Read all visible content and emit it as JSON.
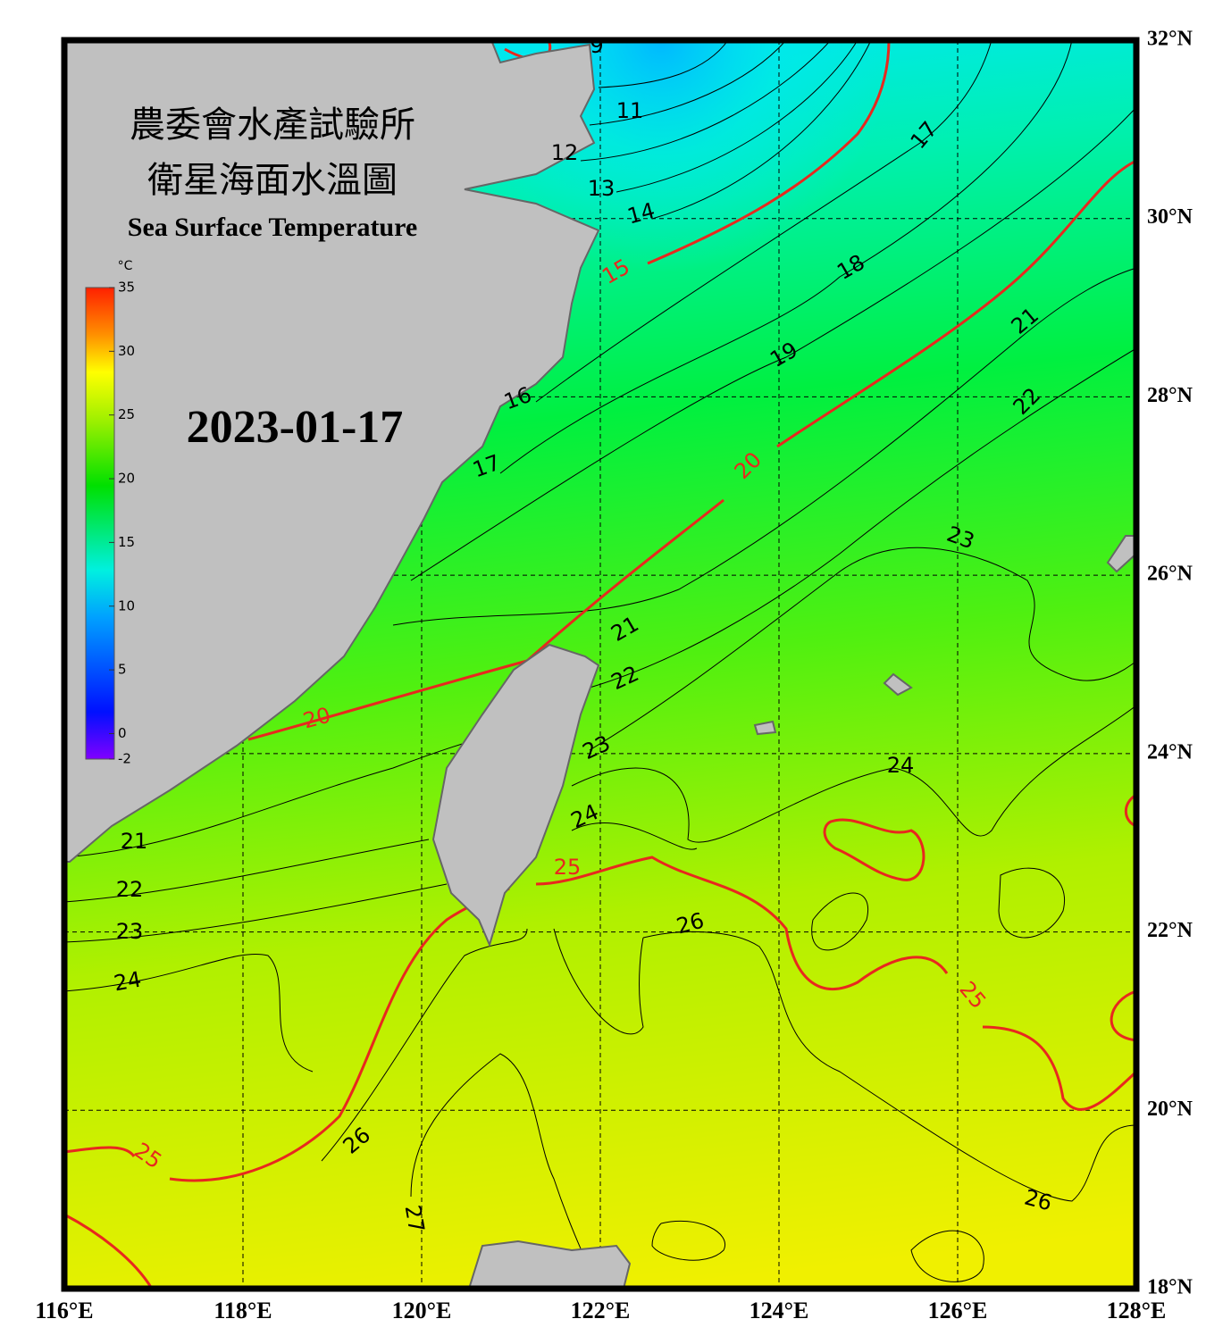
{
  "title": {
    "line1": "農委會水產試驗所",
    "line2": "衛星海面水溫圖",
    "english": "Sea Surface Temperature"
  },
  "date": "2023-01-17",
  "colorbar": {
    "unit": "°C",
    "range": [
      -2,
      35
    ],
    "ticks": [
      -2,
      0,
      5,
      10,
      15,
      20,
      25,
      30,
      35
    ]
  },
  "map": {
    "lonlim": [
      116,
      128
    ],
    "latlim": [
      18,
      32
    ],
    "lon_ticks": [
      {
        "value": 116,
        "label": "116°E"
      },
      {
        "value": 118,
        "label": "118°E"
      },
      {
        "value": 120,
        "label": "120°E"
      },
      {
        "value": 122,
        "label": "122°E"
      },
      {
        "value": 124,
        "label": "124°E"
      },
      {
        "value": 126,
        "label": "126°E"
      },
      {
        "value": 128,
        "label": "128°E"
      }
    ],
    "lat_ticks": [
      {
        "value": 18,
        "label": "18°N"
      },
      {
        "value": 20,
        "label": "20°N"
      },
      {
        "value": 22,
        "label": "22°N"
      },
      {
        "value": 24,
        "label": "24°N"
      },
      {
        "value": 26,
        "label": "26°N"
      },
      {
        "value": 28,
        "label": "28°N"
      },
      {
        "value": 30,
        "label": "30°N"
      },
      {
        "value": 32,
        "label": "32°N"
      }
    ]
  },
  "contour_labels": [
    9,
    11,
    12,
    13,
    14,
    15,
    16,
    17,
    17,
    18,
    19,
    20,
    20,
    21,
    21,
    21,
    22,
    22,
    22,
    23,
    23,
    23,
    24,
    24,
    24,
    25,
    25,
    25,
    26,
    26,
    26,
    27
  ]
}
